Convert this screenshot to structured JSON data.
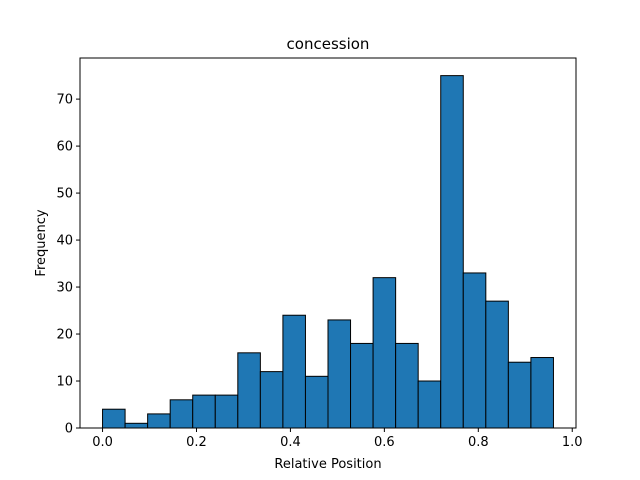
{
  "chart_data": {
    "type": "bar",
    "subtype": "histogram",
    "title": "concession",
    "xlabel": "Relative Position",
    "ylabel": "Frequency",
    "xlim": [
      -0.048,
      1.008
    ],
    "ylim": [
      0,
      78.75
    ],
    "xticks": [
      0.0,
      0.2,
      0.4,
      0.6,
      0.8,
      1.0
    ],
    "xtick_labels": [
      "0.0",
      "0.2",
      "0.4",
      "0.6",
      "0.8",
      "1.0"
    ],
    "yticks": [
      0,
      10,
      20,
      30,
      40,
      50,
      60,
      70
    ],
    "ytick_labels": [
      "0",
      "10",
      "20",
      "30",
      "40",
      "50",
      "60",
      "70"
    ],
    "bin_edges": [
      0.0,
      0.048,
      0.096,
      0.144,
      0.192,
      0.24,
      0.288,
      0.336,
      0.384,
      0.432,
      0.48,
      0.528,
      0.576,
      0.624,
      0.672,
      0.72,
      0.768,
      0.816,
      0.864,
      0.912,
      0.96
    ],
    "values": [
      4,
      1,
      3,
      6,
      7,
      7,
      16,
      12,
      24,
      11,
      23,
      18,
      32,
      18,
      10,
      75,
      33,
      27,
      14,
      15
    ],
    "bar_color": "#1f77b4",
    "edge_color": "#000000",
    "grid": false,
    "legend": false
  }
}
